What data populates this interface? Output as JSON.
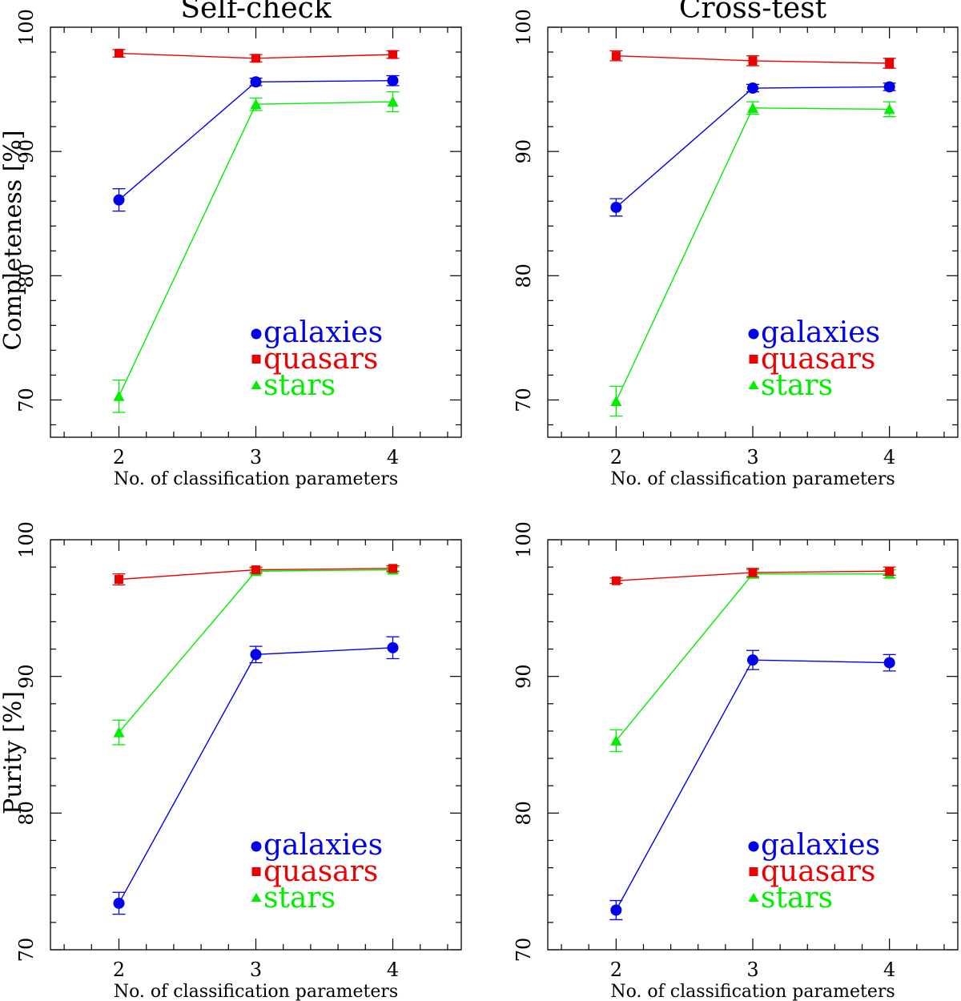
{
  "colors": {
    "galaxies": "#0000ee",
    "quasars": "#ee0000",
    "stars": "#00ee00",
    "axis": "#000000"
  },
  "chart_data": [
    {
      "type": "line",
      "title": "Self-check",
      "ylabel": "Completeness [%]",
      "xlabel": "No. of classification parameters",
      "x": [
        2,
        3,
        4
      ],
      "xlim": [
        1.5,
        4.5
      ],
      "ylim": [
        67,
        100
      ],
      "xticks": [
        2,
        3,
        4
      ],
      "yticks": [
        70,
        80,
        90,
        100
      ],
      "legend_position": "lower-right",
      "series": [
        {
          "name": "galaxies",
          "marker": "circle",
          "values": [
            86.1,
            95.6,
            95.7
          ],
          "errors": [
            0.9,
            0.3,
            0.4
          ]
        },
        {
          "name": "quasars",
          "marker": "square",
          "values": [
            97.9,
            97.5,
            97.8
          ],
          "errors": [
            0.3,
            0.3,
            0.3
          ]
        },
        {
          "name": "stars",
          "marker": "triangle",
          "values": [
            70.3,
            93.8,
            94.0
          ],
          "errors": [
            1.3,
            0.5,
            0.8
          ]
        }
      ]
    },
    {
      "type": "line",
      "title": "Cross-test",
      "ylabel": "",
      "xlabel": "No. of classification parameters",
      "x": [
        2,
        3,
        4
      ],
      "xlim": [
        1.5,
        4.5
      ],
      "ylim": [
        67,
        100
      ],
      "xticks": [
        2,
        3,
        4
      ],
      "yticks": [
        70,
        80,
        90,
        100
      ],
      "legend_position": "lower-right",
      "series": [
        {
          "name": "galaxies",
          "marker": "circle",
          "values": [
            85.5,
            95.1,
            95.2
          ],
          "errors": [
            0.7,
            0.3,
            0.3
          ]
        },
        {
          "name": "quasars",
          "marker": "square",
          "values": [
            97.7,
            97.3,
            97.1
          ],
          "errors": [
            0.4,
            0.4,
            0.4
          ]
        },
        {
          "name": "stars",
          "marker": "triangle",
          "values": [
            69.9,
            93.5,
            93.4
          ],
          "errors": [
            1.2,
            0.5,
            0.6
          ]
        }
      ]
    },
    {
      "type": "line",
      "title": "",
      "ylabel": "Purity [%]",
      "xlabel": "No. of classification parameters",
      "x": [
        2,
        3,
        4
      ],
      "xlim": [
        1.5,
        4.5
      ],
      "ylim": [
        70,
        100
      ],
      "xticks": [
        2,
        3,
        4
      ],
      "yticks": [
        70,
        80,
        90,
        100
      ],
      "legend_position": "lower-right",
      "series": [
        {
          "name": "galaxies",
          "marker": "circle",
          "values": [
            73.4,
            91.6,
            92.1
          ],
          "errors": [
            0.8,
            0.6,
            0.8
          ]
        },
        {
          "name": "quasars",
          "marker": "square",
          "values": [
            97.1,
            97.8,
            97.9
          ],
          "errors": [
            0.4,
            0.2,
            0.2
          ]
        },
        {
          "name": "stars",
          "marker": "triangle",
          "values": [
            85.9,
            97.7,
            97.8
          ],
          "errors": [
            0.9,
            0.2,
            0.2
          ]
        }
      ]
    },
    {
      "type": "line",
      "title": "",
      "ylabel": "",
      "xlabel": "No. of classification parameters",
      "x": [
        2,
        3,
        4
      ],
      "xlim": [
        1.5,
        4.5
      ],
      "ylim": [
        70,
        100
      ],
      "xticks": [
        2,
        3,
        4
      ],
      "yticks": [
        70,
        80,
        90,
        100
      ],
      "legend_position": "lower-right",
      "series": [
        {
          "name": "galaxies",
          "marker": "circle",
          "values": [
            72.9,
            91.2,
            91.0
          ],
          "errors": [
            0.7,
            0.7,
            0.6
          ]
        },
        {
          "name": "quasars",
          "marker": "square",
          "values": [
            97.0,
            97.6,
            97.7
          ],
          "errors": [
            0.2,
            0.3,
            0.3
          ]
        },
        {
          "name": "stars",
          "marker": "triangle",
          "values": [
            85.3,
            97.5,
            97.5
          ],
          "errors": [
            0.8,
            0.3,
            0.3
          ]
        }
      ]
    }
  ]
}
